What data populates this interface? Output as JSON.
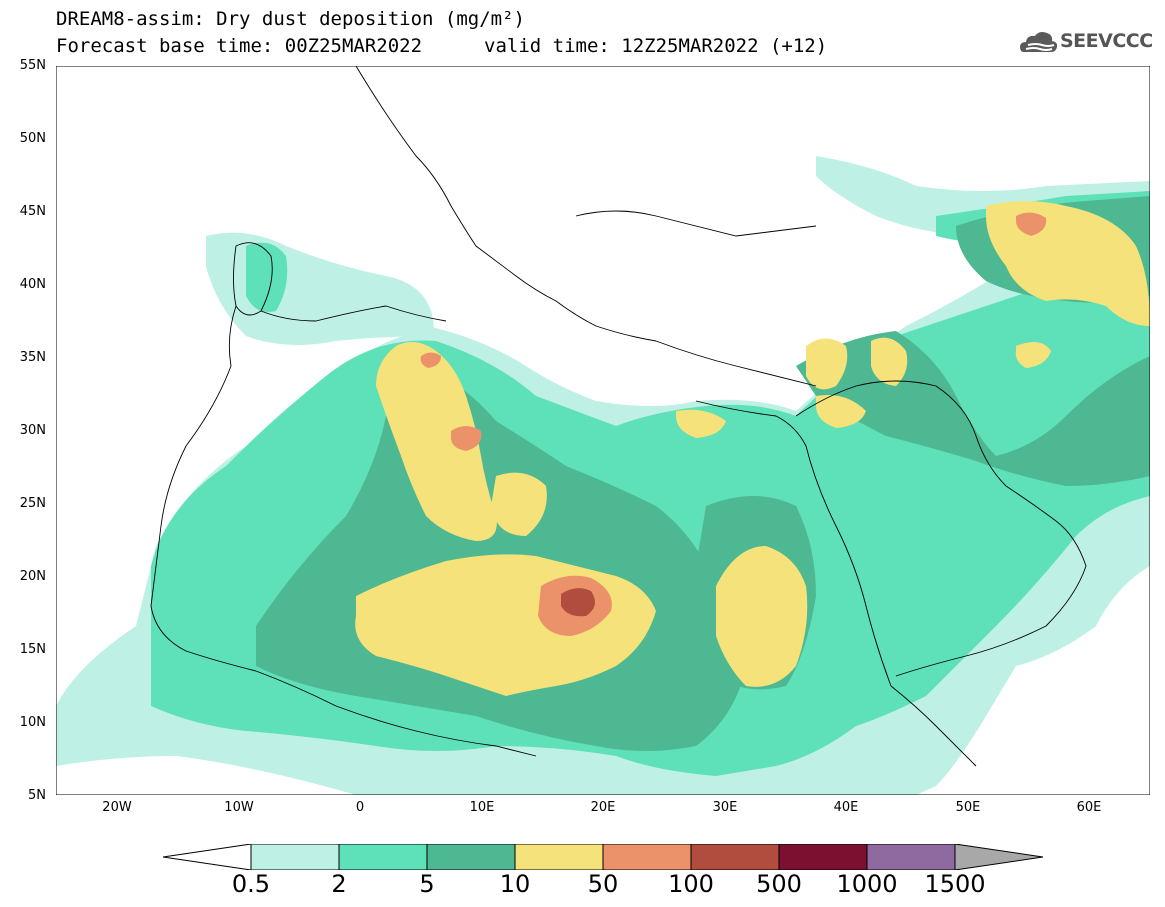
{
  "header": {
    "title_line1": "DREAM8-assim: Dry dust deposition (mg/m²)",
    "title_line2_left": "Forecast base time: 00Z25MAR2022",
    "title_line2_right": "valid time: 12Z25MAR2022 (+12)",
    "logo_text": "SEEVCCC",
    "logo_icon": "cloud-icon"
  },
  "map": {
    "lat_labels": [
      "55N",
      "50N",
      "45N",
      "40N",
      "35N",
      "30N",
      "25N",
      "20N",
      "15N",
      "10N",
      "5N"
    ],
    "lon_labels": [
      "20W",
      "10W",
      "0",
      "10E",
      "20E",
      "30E",
      "40E",
      "50E",
      "60E"
    ],
    "lat_range": [
      5,
      55
    ],
    "lon_range": [
      -25,
      65
    ]
  },
  "colorbar": {
    "labels": [
      "0.5",
      "2",
      "5",
      "10",
      "50",
      "100",
      "500",
      "1000",
      "1500"
    ],
    "colors": [
      "#bff0e6",
      "#5ee0b8",
      "#4db891",
      "#f5e27a",
      "#ec926a",
      "#b04d3e",
      "#7b1030",
      "#8e6aa0"
    ],
    "under_color": "#ffffff",
    "over_color": "#a8a8a8"
  }
}
